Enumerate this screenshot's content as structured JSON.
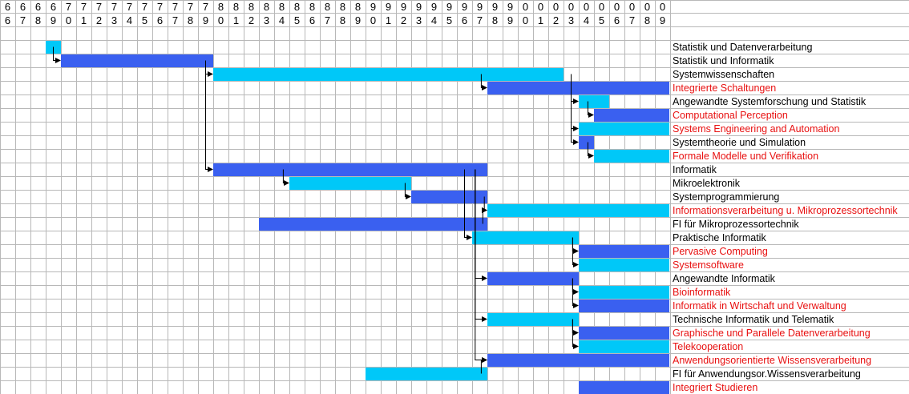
{
  "chart_data": {
    "type": "gantt",
    "x_tick_tens": [
      "6",
      "6",
      "6",
      "6",
      "7",
      "7",
      "7",
      "7",
      "7",
      "7",
      "7",
      "7",
      "7",
      "7",
      "8",
      "8",
      "8",
      "8",
      "8",
      "8",
      "8",
      "8",
      "8",
      "8",
      "9",
      "9",
      "9",
      "9",
      "9",
      "9",
      "9",
      "9",
      "9",
      "9",
      "0",
      "0",
      "0",
      "0",
      "0",
      "0",
      "0",
      "0",
      "0",
      "0"
    ],
    "x_tick_units": [
      "6",
      "7",
      "8",
      "9",
      "0",
      "1",
      "2",
      "3",
      "4",
      "5",
      "6",
      "7",
      "8",
      "9",
      "0",
      "1",
      "2",
      "3",
      "4",
      "5",
      "6",
      "7",
      "8",
      "9",
      "0",
      "1",
      "2",
      "3",
      "4",
      "5",
      "6",
      "7",
      "8",
      "9",
      "0",
      "1",
      "2",
      "3",
      "4",
      "5",
      "6",
      "7",
      "8",
      "9"
    ],
    "x_range": [
      1966,
      2009
    ],
    "colors": {
      "cyan": "#00c8f8",
      "blue": "#3a60f0",
      "black_label": "#000000",
      "red_label": "#e81010",
      "grid": "#b8b8b8"
    },
    "tasks": [
      {
        "name": "Statistik und Datenverarbeitung",
        "start": 1969,
        "end": 1970,
        "color": "cyan",
        "label_color": "black"
      },
      {
        "name": "Statistik und Informatik",
        "start": 1970,
        "end": 1980,
        "color": "blue",
        "label_color": "black"
      },
      {
        "name": "Systemwissenschaften",
        "start": 1980,
        "end": 2003,
        "color": "cyan",
        "label_color": "black"
      },
      {
        "name": "Integrierte Schaltungen",
        "start": 1998,
        "end": 2010,
        "color": "blue",
        "label_color": "red"
      },
      {
        "name": "Angewandte Systemforschung und Statistik",
        "start": 2004,
        "end": 2006,
        "color": "cyan",
        "label_color": "black"
      },
      {
        "name": "Computational Perception",
        "start": 2005,
        "end": 2010,
        "color": "blue",
        "label_color": "red"
      },
      {
        "name": "Systems Engineering and Automation",
        "start": 2004,
        "end": 2010,
        "color": "cyan",
        "label_color": "red"
      },
      {
        "name": "Systemtheorie und Simulation",
        "start": 2004,
        "end": 2005,
        "color": "blue",
        "label_color": "black"
      },
      {
        "name": "Formale Modelle und Verifikation",
        "start": 2005,
        "end": 2010,
        "color": "cyan",
        "label_color": "red"
      },
      {
        "name": "Informatik",
        "start": 1980,
        "end": 1998,
        "color": "blue",
        "label_color": "black"
      },
      {
        "name": "Mikroelektronik",
        "start": 1985,
        "end": 1993,
        "color": "cyan",
        "label_color": "black"
      },
      {
        "name": "Systemprogrammierung",
        "start": 1993,
        "end": 1998,
        "color": "blue",
        "label_color": "black"
      },
      {
        "name": "Informationsverarbeitung u. Mikroprozessortechnik",
        "start": 1998,
        "end": 2010,
        "color": "cyan",
        "label_color": "red"
      },
      {
        "name": "FI für Mikroprozessortechnik",
        "start": 1983,
        "end": 1998,
        "color": "blue",
        "label_color": "black"
      },
      {
        "name": "Praktische Informatik",
        "start": 1997,
        "end": 2004,
        "color": "cyan",
        "label_color": "black"
      },
      {
        "name": "Pervasive Computing",
        "start": 2004,
        "end": 2010,
        "color": "blue",
        "label_color": "red"
      },
      {
        "name": "Systemsoftware",
        "start": 2004,
        "end": 2010,
        "color": "cyan",
        "label_color": "red"
      },
      {
        "name": "Angewandte Informatik",
        "start": 1998,
        "end": 2004,
        "color": "blue",
        "label_color": "black"
      },
      {
        "name": "Bioinformatik",
        "start": 2004,
        "end": 2010,
        "color": "cyan",
        "label_color": "red"
      },
      {
        "name": "Informatik in Wirtschaft und Verwaltung",
        "start": 2004,
        "end": 2010,
        "color": "blue",
        "label_color": "red"
      },
      {
        "name": "Technische Informatik und Telematik",
        "start": 1998,
        "end": 2004,
        "color": "cyan",
        "label_color": "black"
      },
      {
        "name": "Graphische und Parallele Datenverarbeitung",
        "start": 2004,
        "end": 2010,
        "color": "blue",
        "label_color": "red"
      },
      {
        "name": "Telekooperation",
        "start": 2004,
        "end": 2010,
        "color": "cyan",
        "label_color": "red"
      },
      {
        "name": "Anwendungsorientierte Wissensverarbeitung",
        "start": 1998,
        "end": 2010,
        "color": "blue",
        "label_color": "red"
      },
      {
        "name": "FI für Anwendungsor.Wissensverarbeitung",
        "start": 1990,
        "end": 1998,
        "color": "cyan",
        "label_color": "black"
      },
      {
        "name": "Integriert Studieren",
        "start": 2004,
        "end": 2010,
        "color": "blue",
        "label_color": "red"
      }
    ],
    "links": [
      {
        "from": 0,
        "to": 1,
        "year": 1969.5
      },
      {
        "from": 1,
        "to": 2,
        "year": 1979.5
      },
      {
        "from": 1,
        "to": 9,
        "year": 1979.5
      },
      {
        "from": 2,
        "to": 3,
        "year": 1997.6
      },
      {
        "from": 2,
        "to": 4,
        "year": 2003.5
      },
      {
        "from": 2,
        "to": 6,
        "year": 2003.5
      },
      {
        "from": 2,
        "to": 7,
        "year": 2003.5
      },
      {
        "from": 4,
        "to": 5,
        "year": 2004.6
      },
      {
        "from": 7,
        "to": 8,
        "year": 2004.6
      },
      {
        "from": 9,
        "to": 10,
        "year": 1984.6
      },
      {
        "from": 10,
        "to": 11,
        "year": 1992.6
      },
      {
        "from": 11,
        "to": 12,
        "year": 1997.8
      },
      {
        "from": 13,
        "to": 12,
        "year": 1997.7
      },
      {
        "from": 9,
        "to": 14,
        "year": 1996.5
      },
      {
        "from": 14,
        "to": 15,
        "year": 2003.6
      },
      {
        "from": 14,
        "to": 16,
        "year": 2003.6
      },
      {
        "from": 9,
        "to": 17,
        "year": 1997.2
      },
      {
        "from": 17,
        "to": 18,
        "year": 2003.6
      },
      {
        "from": 17,
        "to": 19,
        "year": 2003.6
      },
      {
        "from": 9,
        "to": 20,
        "year": 1997.2
      },
      {
        "from": 20,
        "to": 21,
        "year": 2003.6
      },
      {
        "from": 20,
        "to": 22,
        "year": 2003.6
      },
      {
        "from": 9,
        "to": 23,
        "year": 1997.2
      },
      {
        "from": 24,
        "to": 23,
        "year": 1997.6
      }
    ]
  }
}
